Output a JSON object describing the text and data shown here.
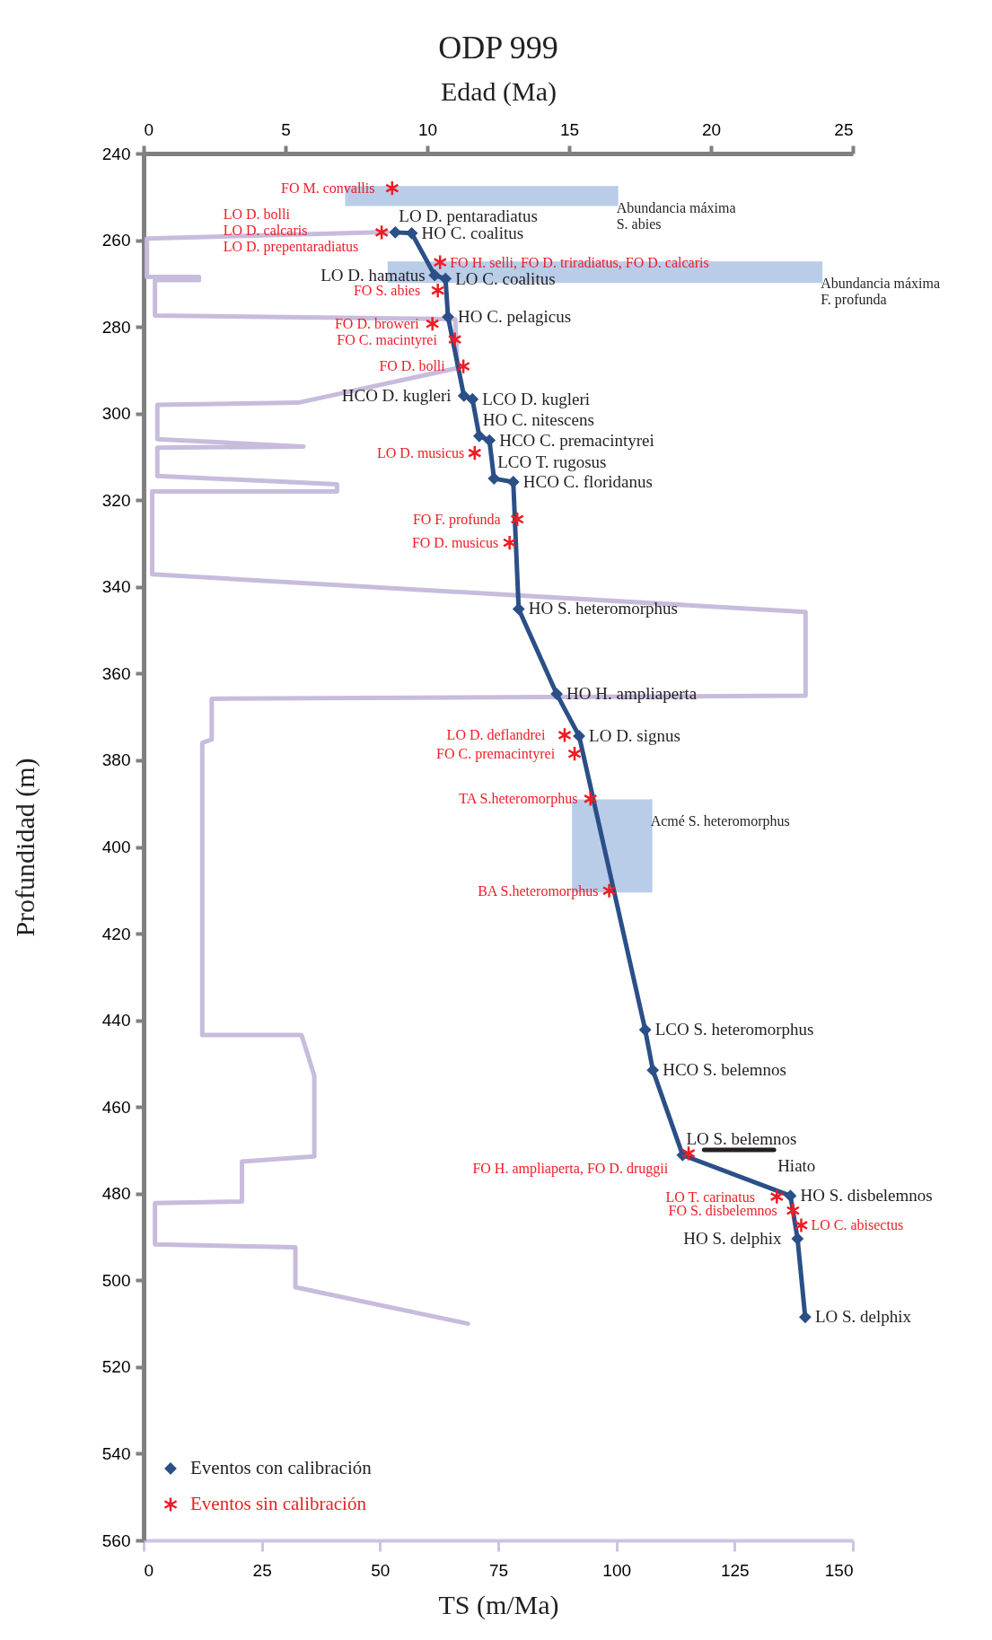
{
  "chart_data": {
    "type": "line",
    "title": "ODP 999",
    "x2label": "Edad (Ma)",
    "xlabel": "TS (m/Ma)",
    "ylabel": "Profundidad (m)",
    "xlim": [
      0,
      150
    ],
    "xticks": [
      0,
      25,
      50,
      75,
      100,
      125,
      150
    ],
    "x2lim": [
      0,
      25
    ],
    "x2ticks": [
      0,
      5,
      10,
      15,
      20,
      25
    ],
    "ylim": [
      560,
      240
    ],
    "yticks": [
      240,
      260,
      280,
      300,
      320,
      340,
      360,
      380,
      400,
      420,
      440,
      460,
      480,
      500,
      520,
      540,
      560
    ],
    "legend": "bottom left",
    "line_style": "solid",
    "orientation": "horizontal",
    "series": [
      {
        "color": "#c8bcdd",
        "marker": "none",
        "values": [
          51.5,
          0.7,
          0.7,
          11.7,
          11.7,
          2.4,
          2.4,
          65.9,
          66.4,
          32.7,
          2.9,
          2.9,
          33.8,
          2.9,
          2.9,
          40.9,
          40.9,
          1.8,
          1.8,
          140.0,
          140.0,
          14.4,
          14.4,
          12.4,
          12.4,
          33.4,
          36.1,
          36.1,
          20.8,
          20.8,
          2.4,
          2.4,
          32.1,
          32.1,
          68.6
        ],
        "x": [
          258.1,
          259.6,
          268.5,
          268.5,
          269.2,
          269.2,
          277.4,
          278.2,
          289.5,
          297.5,
          298.0,
          305.9,
          307.6,
          307.9,
          314.4,
          316.3,
          318.0,
          318.0,
          337.1,
          345.8,
          365.1,
          365.8,
          375.2,
          376.0,
          443.4,
          443.4,
          452.8,
          471.4,
          472.6,
          481.8,
          482.2,
          491.7,
          492.4,
          501.6,
          510.0
        ]
      },
      {
        "type": "bar",
        "axis": "x2",
        "color": "#b9cde9",
        "base": [
          7.1,
          8.6,
          15.1
        ],
        "values": [
          9.6,
          15.3,
          2.8
        ],
        "x": [
          249.8,
          267.4,
          399.75
        ],
        "xerrors": [
          [
            247.5,
            252.1
          ],
          [
            264.9,
            269.9
          ],
          [
            389.0,
            410.5
          ]
        ],
        "value_labels": [
          "Abundancia máxima\nS. abies",
          "Abundancia máxima\nF. profunda",
          "Acmé S. heteromorphus"
        ]
      },
      {
        "axis": "x2",
        "name": "Eventos con calibración",
        "color": "#2b4f87",
        "marker": "diamond",
        "values": [
          8.87,
          9.45,
          10.26,
          10.64,
          10.73,
          11.29,
          11.59,
          11.83,
          12.19,
          12.35,
          13.03,
          13.22,
          14.56,
          15.35,
          17.68,
          17.95,
          19.0,
          22.8,
          23.05,
          23.32
        ],
        "x": [
          258.2,
          258.4,
          268.1,
          268.9,
          277.7,
          295.9,
          296.7,
          305.2,
          306.2,
          315.0,
          315.8,
          345.1,
          364.7,
          374.4,
          442.2,
          451.5,
          471.1,
          480.5,
          490.4,
          508.5
        ],
        "value_labels": [
          "LO D. pentaradiatus",
          "HO C. coalitus",
          "LO D. hamatus",
          "LO C. coalitus",
          "HO C. pelagicus",
          "HCO D. kugleri",
          "LCO D. kugleri",
          "HO C. nitescens",
          "HCO C. premacintyrei",
          "LCO T. rugosus",
          "HCO C. floridanus",
          "HO S. heteromorphus",
          "HO H. ampliaperta",
          "LO D. signus",
          "LCO S. heteromorphus",
          "HCO S. belemnos",
          "LO S. belemnos",
          "HO S. disbelemnos",
          "HO S. delphix",
          "LO S. delphix"
        ]
      },
      {
        "axis": "x2",
        "color": "#231f20",
        "marker": "none",
        "values": [
          19.76,
          22.22
        ],
        "x": [
          469.9,
          469.9
        ],
        "value_labels": [
          null,
          "Hiato"
        ]
      },
      {
        "type": "scatter",
        "axis": "x2",
        "name": "Eventos sin calibración",
        "color": "#ee1c25",
        "marker": "cross",
        "values": [
          8.76,
          8.39,
          10.45,
          10.37,
          10.18,
          10.97,
          11.27,
          11.67,
          13.17,
          12.9,
          14.84,
          15.19,
          15.75,
          16.41,
          19.21,
          22.32,
          22.89,
          23.18
        ],
        "x": [
          248.0,
          258.2,
          265.1,
          271.6,
          279.3,
          282.9,
          289.1,
          309.1,
          324.4,
          329.8,
          374.2,
          378.5,
          388.9,
          410.1,
          470.7,
          480.7,
          483.9,
          487.3
        ],
        "value_labels": [
          "FO M. convallis",
          "LO D. bolli\nLO D. calcaris\nLO D. prepentaradiatus",
          "FO H. selli, FO D. triradiatus, FO D. calcaris",
          "FO S. abies",
          "FO D. broweri",
          "FO C. macintyrei",
          "FO D. bolli",
          "LO D. musicus",
          "FO F. profunda",
          "FO D. musicus",
          "LO D. deflandrei",
          "FO C. premacintyrei",
          "TA S.heteromorphus",
          "BA S.heteromorphus",
          "FO H. ampliaperta, FO D. druggii",
          "LO T. carinatus",
          "FO S. disbelemnos",
          "LO C. abisectus"
        ]
      }
    ]
  }
}
